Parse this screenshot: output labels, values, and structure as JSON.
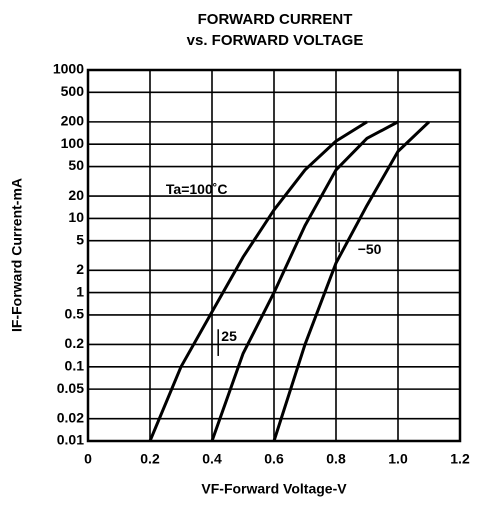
{
  "chart_data": {
    "type": "line",
    "title": "FORWARD CURRENT",
    "subtitle": "vs. FORWARD VOLTAGE",
    "x_label": "VF-Forward Voltage-V",
    "y_label": "IF-Forward Current-mA",
    "log_y": true,
    "grid": true,
    "xlim": [
      0,
      1.2
    ],
    "xticks": [
      0,
      0.2,
      0.4,
      0.6,
      0.8,
      {
        "value": 1,
        "label": "1.0"
      },
      1.2
    ],
    "ylim": [
      0.01,
      1000
    ],
    "yticks": [
      0.01,
      0.02,
      0.05,
      0.1,
      0.2,
      0.5,
      1,
      2,
      5,
      10,
      20,
      50,
      100,
      200,
      500,
      1000
    ],
    "series": [
      {
        "name": "Ta=100˚C",
        "color": "#000000",
        "x": [
          0.2,
          0.3,
          0.4,
          0.5,
          0.6,
          0.7,
          0.8,
          0.9
        ],
        "values": [
          0.01,
          0.1,
          0.55,
          3,
          13,
          45,
          110,
          200
        ]
      },
      {
        "name": "25",
        "color": "#000000",
        "x": [
          0.4,
          0.5,
          0.6,
          0.7,
          0.8,
          0.9,
          1.0
        ],
        "values": [
          0.01,
          0.15,
          1,
          8,
          45,
          120,
          200
        ]
      },
      {
        "name": "−50",
        "color": "#000000",
        "x": [
          0.6,
          0.7,
          0.8,
          0.9,
          1.0,
          1.1
        ],
        "values": [
          0.01,
          0.2,
          2.5,
          15,
          80,
          200
        ]
      }
    ]
  }
}
